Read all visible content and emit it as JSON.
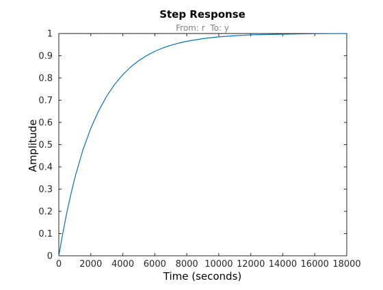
{
  "chart_data": {
    "type": "line",
    "title": "Step Response",
    "subtitle": "From: r  To: y",
    "xlabel": "Time (seconds)",
    "ylabel": "Amplitude",
    "xlim": [
      0,
      18000
    ],
    "ylim": [
      0,
      1
    ],
    "xticks": [
      0,
      2000,
      4000,
      6000,
      8000,
      10000,
      12000,
      14000,
      16000,
      18000
    ],
    "yticks": [
      0,
      0.1,
      0.2,
      0.3,
      0.4,
      0.5,
      0.6,
      0.7,
      0.8,
      0.9,
      1
    ],
    "grid": false,
    "reference_line": {
      "y": 1,
      "style": "dotted",
      "color": "#000000"
    },
    "series": [
      {
        "color": "#0072BD",
        "x": [
          0,
          250,
          500,
          750,
          1000,
          1500,
          2000,
          2500,
          3000,
          3500,
          4000,
          4500,
          5000,
          5500,
          6000,
          6500,
          7000,
          7500,
          8000,
          9000,
          10000,
          11000,
          12000,
          14000,
          16000,
          18000
        ],
        "y": [
          0,
          0.102,
          0.194,
          0.276,
          0.35,
          0.475,
          0.574,
          0.654,
          0.719,
          0.772,
          0.815,
          0.85,
          0.878,
          0.901,
          0.92,
          0.935,
          0.947,
          0.957,
          0.965,
          0.977,
          0.985,
          0.99,
          0.994,
          0.997,
          0.999,
          1.0
        ]
      }
    ]
  },
  "colors": {
    "axes": "#262626",
    "tick_label": "#262626",
    "subtitle": "#808080",
    "line": "#0072BD"
  }
}
